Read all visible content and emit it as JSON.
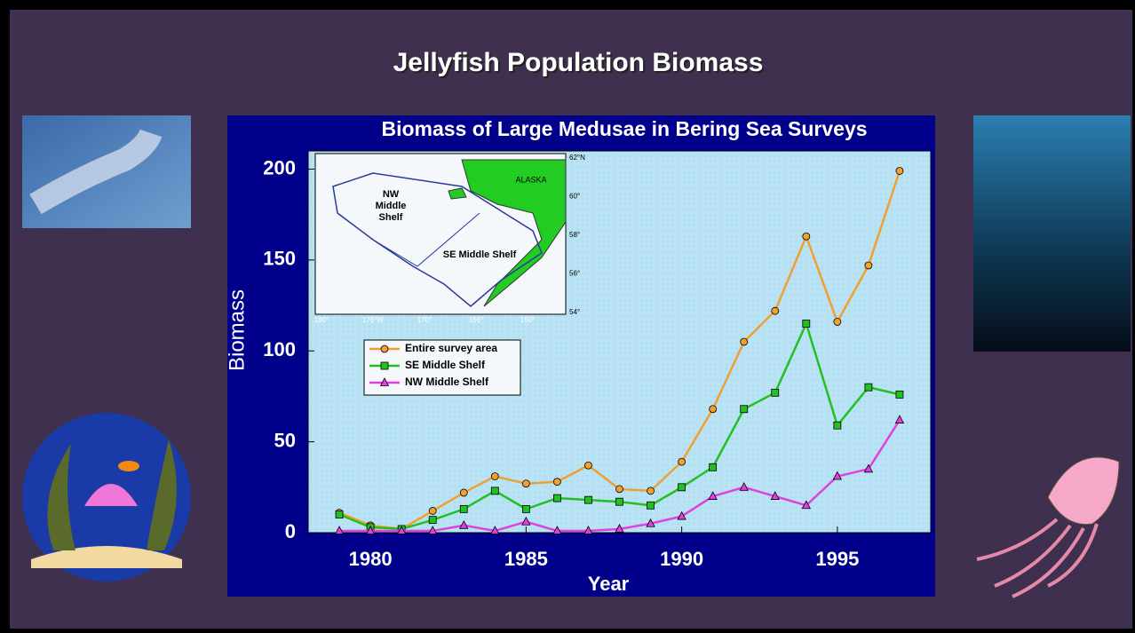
{
  "slide_title": "Jellyfish Population Biomass",
  "chart_data": {
    "type": "line",
    "title": "Biomass of Large Medusae in Bering Sea Surveys",
    "x_label": "Year",
    "y_label": "Biomass",
    "x": [
      1979,
      1980,
      1981,
      1982,
      1983,
      1984,
      1985,
      1986,
      1987,
      1988,
      1989,
      1990,
      1991,
      1992,
      1993,
      1994,
      1995,
      1996,
      1997
    ],
    "series": [
      {
        "name": "Entire survey area",
        "color": "#f0a030",
        "marker": "circle",
        "values": [
          11,
          4,
          2,
          12,
          22,
          31,
          27,
          28,
          37,
          24,
          23,
          39,
          68,
          105,
          122,
          163,
          116,
          147,
          199
        ]
      },
      {
        "name": "SE Middle Shelf",
        "color": "#22c022",
        "marker": "square",
        "values": [
          10,
          3,
          2,
          7,
          13,
          23,
          13,
          19,
          18,
          17,
          15,
          25,
          36,
          68,
          77,
          115,
          59,
          80,
          76
        ]
      },
      {
        "name": "NW Middle Shelf",
        "color": "#e040e0",
        "marker": "triangle",
        "values": [
          1,
          1,
          1,
          1,
          4,
          1,
          6,
          1,
          1,
          2,
          5,
          9,
          20,
          25,
          20,
          15,
          31,
          35,
          62
        ]
      }
    ],
    "xlim": [
      1978,
      1998
    ],
    "ylim": [
      0,
      210
    ],
    "xticks": [
      1980,
      1985,
      1990,
      1995
    ],
    "yticks": [
      0,
      50,
      100,
      150,
      200
    ],
    "grid": false,
    "inset_map": {
      "region": "ALASKA",
      "nw_label": [
        "NW",
        "Middle",
        "Shelf"
      ],
      "se_label": "SE Middle Shelf",
      "lon_labels": [
        "180°",
        "176°W",
        "170°",
        "166°",
        "160°"
      ],
      "lat_labels": [
        "62°N",
        "60°",
        "58°",
        "56°",
        "54°"
      ]
    }
  }
}
